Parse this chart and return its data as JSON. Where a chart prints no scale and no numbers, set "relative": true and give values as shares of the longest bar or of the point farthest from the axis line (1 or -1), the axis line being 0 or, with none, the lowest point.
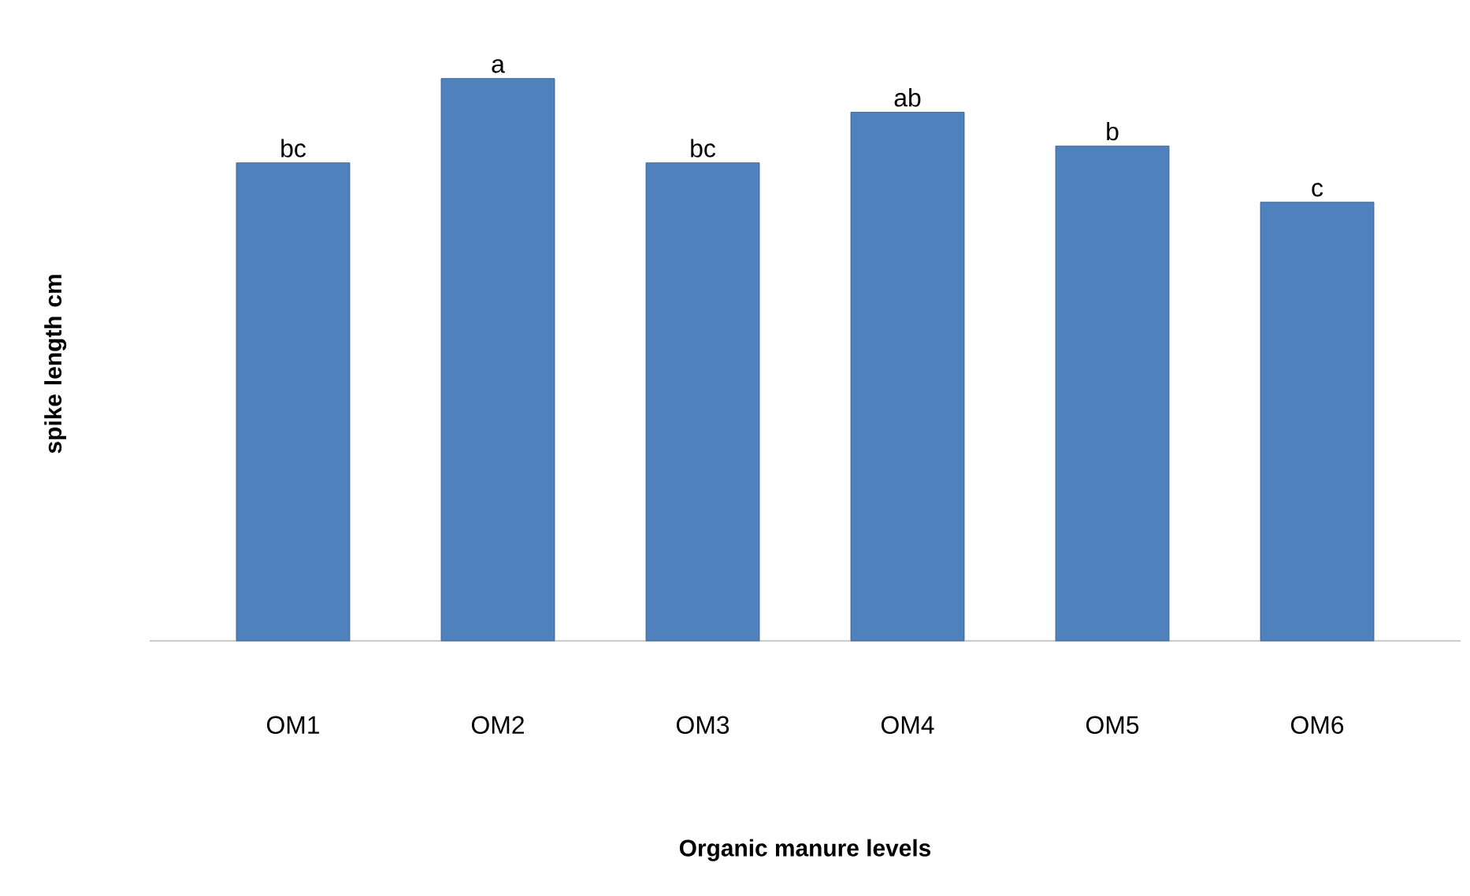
{
  "chart_data": {
    "type": "bar",
    "relative": true,
    "xlabel": "Organic manure levels",
    "ylabel": "spike length cm",
    "categories": [
      "OM1",
      "OM2",
      "OM3",
      "OM4",
      "OM5",
      "OM6"
    ],
    "values": [
      0.85,
      1,
      0.85,
      0.94,
      0.88,
      0.78
    ],
    "color": "#4f81bd",
    "annotations": [
      {
        "text": "bc",
        "x": "OM1",
        "y": 0.85
      },
      {
        "text": "a",
        "x": "OM2",
        "y": 1
      },
      {
        "text": "bc",
        "x": "OM3",
        "y": 0.85
      },
      {
        "text": "ab",
        "x": "OM4",
        "y": 0.94
      },
      {
        "text": "b",
        "x": "OM5",
        "y": 0.88
      },
      {
        "text": "c",
        "x": "OM6",
        "y": 0.78
      }
    ]
  }
}
